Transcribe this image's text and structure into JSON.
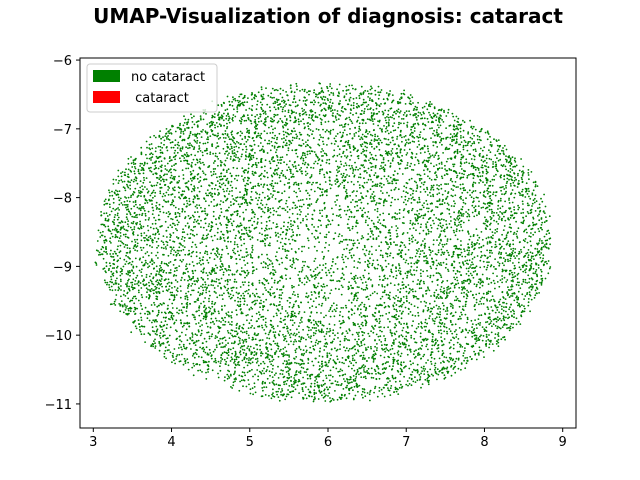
{
  "chart_data": {
    "type": "scatter",
    "title": "UMAP-Visualization of diagnosis: cataract",
    "xlabel": "",
    "ylabel": "",
    "xlim": [
      2.83,
      9.17
    ],
    "ylim": [
      -11.35,
      -5.97
    ],
    "x_ticks": [
      3,
      4,
      5,
      6,
      7,
      8,
      9
    ],
    "x_tick_labels": [
      "3",
      "4",
      "5",
      "6",
      "7",
      "8",
      "9"
    ],
    "y_ticks": [
      -6,
      -7,
      -8,
      -9,
      -10,
      -11
    ],
    "y_tick_labels": [
      "−6",
      "−7",
      "−8",
      "−9",
      "−10",
      "−11"
    ],
    "grid": false,
    "legend_position": "upper-left",
    "series": [
      {
        "name": "no cataract",
        "color": "#008000",
        "cloud": {
          "shape": "ellipse",
          "center": [
            5.95,
            -8.65
          ],
          "semi_axis_x": 2.9,
          "semi_axis_y": 2.3,
          "approx_point_count": 9000
        }
      },
      {
        "name": " cataract",
        "color": "#ff0000",
        "cloud": {
          "shape": "none",
          "approx_point_count": 0
        }
      }
    ]
  }
}
